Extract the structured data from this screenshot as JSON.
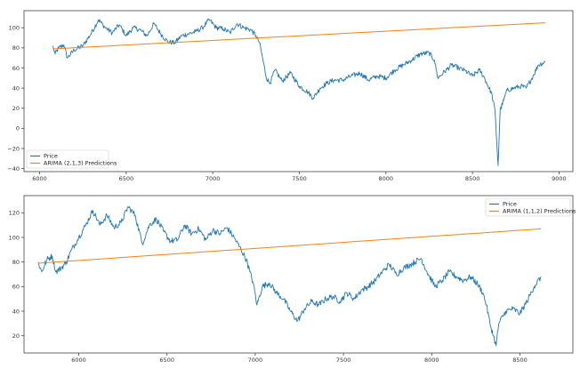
{
  "chart_data": [
    {
      "type": "line",
      "xlim": [
        5910,
        9080
      ],
      "ylim": [
        -43,
        117
      ],
      "xticks": [
        6000,
        6500,
        7000,
        7500,
        8000,
        8500,
        9000
      ],
      "yticks": [
        -40,
        -20,
        0,
        20,
        40,
        60,
        80,
        100
      ],
      "legend": "bottom-left",
      "grid": false,
      "series": [
        {
          "name": "Price",
          "color": "#1f77b4",
          "keypoints": [
            [
              6075,
              82
            ],
            [
              6090,
              74
            ],
            [
              6110,
              80
            ],
            [
              6140,
              83
            ],
            [
              6160,
              70
            ],
            [
              6200,
              78
            ],
            [
              6250,
              82
            ],
            [
              6300,
              95
            ],
            [
              6340,
              108
            ],
            [
              6380,
              100
            ],
            [
              6420,
              95
            ],
            [
              6460,
              103
            ],
            [
              6500,
              92
            ],
            [
              6540,
              100
            ],
            [
              6580,
              98
            ],
            [
              6620,
              92
            ],
            [
              6660,
              104
            ],
            [
              6700,
              94
            ],
            [
              6740,
              86
            ],
            [
              6780,
              85
            ],
            [
              6820,
              92
            ],
            [
              6860,
              94
            ],
            [
              6900,
              96
            ],
            [
              6940,
              100
            ],
            [
              6980,
              108
            ],
            [
              7020,
              100
            ],
            [
              7060,
              99
            ],
            [
              7100,
              95
            ],
            [
              7140,
              104
            ],
            [
              7180,
              100
            ],
            [
              7220,
              98
            ],
            [
              7250,
              92
            ],
            [
              7270,
              85
            ],
            [
              7290,
              68
            ],
            [
              7310,
              50
            ],
            [
              7330,
              45
            ],
            [
              7360,
              58
            ],
            [
              7400,
              47
            ],
            [
              7450,
              55
            ],
            [
              7500,
              42
            ],
            [
              7550,
              36
            ],
            [
              7580,
              30
            ],
            [
              7620,
              40
            ],
            [
              7660,
              45
            ],
            [
              7700,
              48
            ],
            [
              7750,
              48
            ],
            [
              7800,
              52
            ],
            [
              7850,
              55
            ],
            [
              7900,
              48
            ],
            [
              7950,
              52
            ],
            [
              8000,
              50
            ],
            [
              8050,
              58
            ],
            [
              8100,
              63
            ],
            [
              8150,
              68
            ],
            [
              8200,
              74
            ],
            [
              8250,
              75
            ],
            [
              8280,
              68
            ],
            [
              8300,
              50
            ],
            [
              8330,
              55
            ],
            [
              8380,
              63
            ],
            [
              8420,
              60
            ],
            [
              8460,
              57
            ],
            [
              8500,
              52
            ],
            [
              8540,
              58
            ],
            [
              8570,
              50
            ],
            [
              8590,
              42
            ],
            [
              8610,
              35
            ],
            [
              8630,
              18
            ],
            [
              8648,
              -37
            ],
            [
              8660,
              18
            ],
            [
              8680,
              28
            ],
            [
              8700,
              38
            ],
            [
              8740,
              40
            ],
            [
              8780,
              42
            ],
            [
              8810,
              40
            ],
            [
              8850,
              52
            ],
            [
              8880,
              63
            ],
            [
              8920,
              66
            ]
          ]
        },
        {
          "name": "ARIMA (2,1,3) Predictions",
          "color": "#ff7f0e",
          "x": [
            6075,
            8920
          ],
          "y": [
            79,
            105
          ]
        }
      ]
    },
    {
      "type": "line",
      "xlim": [
        5690,
        8800
      ],
      "ylim": [
        6,
        134
      ],
      "xticks": [
        6000,
        6500,
        7000,
        7500,
        8000,
        8500
      ],
      "yticks": [
        20,
        40,
        60,
        80,
        100,
        120
      ],
      "legend": "top-right",
      "grid": false,
      "series": [
        {
          "name": "Price",
          "color": "#1f77b4",
          "keypoints": [
            [
              5770,
              80
            ],
            [
              5790,
              72
            ],
            [
              5820,
              82
            ],
            [
              5850,
              85
            ],
            [
              5870,
              72
            ],
            [
              5900,
              75
            ],
            [
              5930,
              80
            ],
            [
              5960,
              90
            ],
            [
              6000,
              100
            ],
            [
              6040,
              110
            ],
            [
              6080,
              122
            ],
            [
              6120,
              110
            ],
            [
              6160,
              118
            ],
            [
              6200,
              108
            ],
            [
              6240,
              112
            ],
            [
              6280,
              125
            ],
            [
              6320,
              118
            ],
            [
              6360,
              95
            ],
            [
              6400,
              110
            ],
            [
              6440,
              115
            ],
            [
              6480,
              105
            ],
            [
              6520,
              97
            ],
            [
              6560,
              98
            ],
            [
              6600,
              110
            ],
            [
              6640,
              103
            ],
            [
              6680,
              107
            ],
            [
              6720,
              98
            ],
            [
              6760,
              106
            ],
            [
              6800,
              103
            ],
            [
              6840,
              108
            ],
            [
              6880,
              100
            ],
            [
              6920,
              90
            ],
            [
              6950,
              82
            ],
            [
              6970,
              72
            ],
            [
              6990,
              62
            ],
            [
              7010,
              45
            ],
            [
              7040,
              60
            ],
            [
              7080,
              63
            ],
            [
              7120,
              55
            ],
            [
              7160,
              50
            ],
            [
              7200,
              40
            ],
            [
              7240,
              32
            ],
            [
              7280,
              42
            ],
            [
              7320,
              48
            ],
            [
              7360,
              45
            ],
            [
              7400,
              50
            ],
            [
              7440,
              52
            ],
            [
              7480,
              48
            ],
            [
              7520,
              55
            ],
            [
              7560,
              50
            ],
            [
              7600,
              57
            ],
            [
              7640,
              60
            ],
            [
              7680,
              65
            ],
            [
              7720,
              72
            ],
            [
              7760,
              78
            ],
            [
              7800,
              70
            ],
            [
              7840,
              75
            ],
            [
              7880,
              78
            ],
            [
              7940,
              83
            ],
            [
              7980,
              70
            ],
            [
              8020,
              60
            ],
            [
              8060,
              65
            ],
            [
              8100,
              72
            ],
            [
              8140,
              68
            ],
            [
              8180,
              65
            ],
            [
              8220,
              68
            ],
            [
              8260,
              62
            ],
            [
              8290,
              55
            ],
            [
              8310,
              45
            ],
            [
              8330,
              30
            ],
            [
              8350,
              20
            ],
            [
              8365,
              12
            ],
            [
              8380,
              30
            ],
            [
              8420,
              40
            ],
            [
              8460,
              42
            ],
            [
              8500,
              38
            ],
            [
              8540,
              48
            ],
            [
              8580,
              60
            ],
            [
              8620,
              68
            ]
          ]
        },
        {
          "name": "ARIMA (1,1,2) Predictions",
          "color": "#ff7f0e",
          "x": [
            5770,
            8620
          ],
          "y": [
            79,
            107
          ]
        }
      ]
    }
  ]
}
